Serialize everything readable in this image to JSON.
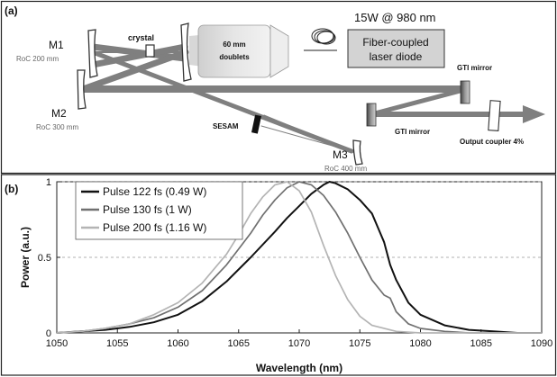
{
  "panel_a": {
    "label": "(a)",
    "m1": "M1",
    "m1_roc": "RoC 200 mm",
    "m2": "M2",
    "m2_roc": "RoC 300 mm",
    "m3": "M3",
    "m3_roc": "RoC 400 mm",
    "crystal": "crystal",
    "doublets_line1": "60 mm",
    "doublets_line2": "doublets",
    "pump": "15W @ 980 nm",
    "diode_line1": "Fiber-coupled",
    "diode_line2": "laser diode",
    "gti_mirror_top": "GTI mirror",
    "gti_mirror_bottom": "GTI mirror",
    "sesam": "SESAM",
    "output_coupler": "Output coupler 4%"
  },
  "panel_b": {
    "label": "(b)"
  },
  "colors": {
    "pulse_122": "#111111",
    "pulse_130": "#707070",
    "pulse_200": "#b4b4b4",
    "beam": "#7a7a7a"
  },
  "chart_data": {
    "type": "line",
    "title": "",
    "xlabel": "Wavelength (nm)",
    "ylabel": "Power (a.u.)",
    "xlim": [
      1050,
      1090
    ],
    "ylim": [
      0,
      1
    ],
    "xticks": [
      "1050",
      "1055",
      "1060",
      "1065",
      "1070",
      "1075",
      "1080",
      "1085",
      "1090"
    ],
    "yticks": [
      "0",
      "0.5",
      "1"
    ],
    "grid": "dashed horizontal at 0.5 and 1",
    "legend_position": "top-left",
    "series": [
      {
        "name": "Pulse 122 fs (0.49 W)",
        "color_key": "pulse_122",
        "x": [
          1050,
          1052,
          1054,
          1056,
          1058,
          1060,
          1062,
          1064,
          1066,
          1068,
          1069,
          1070,
          1071,
          1072,
          1072.5,
          1073,
          1074,
          1075,
          1076,
          1077,
          1077.5,
          1078,
          1079,
          1080,
          1082,
          1084,
          1086,
          1088,
          1090
        ],
        "y": [
          0.0,
          0.01,
          0.02,
          0.04,
          0.07,
          0.12,
          0.21,
          0.34,
          0.5,
          0.67,
          0.76,
          0.84,
          0.92,
          0.98,
          1.0,
          0.99,
          0.95,
          0.88,
          0.79,
          0.6,
          0.45,
          0.35,
          0.2,
          0.12,
          0.05,
          0.02,
          0.01,
          0.0,
          0.0
        ]
      },
      {
        "name": "Pulse 130 fs (1 W)",
        "color_key": "pulse_130",
        "x": [
          1050,
          1052,
          1054,
          1056,
          1058,
          1060,
          1062,
          1064,
          1066,
          1067,
          1068,
          1069,
          1070,
          1071,
          1072,
          1073,
          1074,
          1075,
          1076,
          1077,
          1077.5,
          1078,
          1079,
          1080,
          1082,
          1084,
          1086,
          1090
        ],
        "y": [
          0.0,
          0.01,
          0.03,
          0.06,
          0.1,
          0.17,
          0.28,
          0.45,
          0.66,
          0.78,
          0.88,
          0.96,
          1.0,
          0.98,
          0.91,
          0.8,
          0.66,
          0.5,
          0.35,
          0.25,
          0.23,
          0.14,
          0.06,
          0.03,
          0.01,
          0.0,
          0.0,
          0.0
        ]
      },
      {
        "name": "Pulse 200 fs (1.16 W)",
        "color_key": "pulse_200",
        "x": [
          1050,
          1052,
          1054,
          1056,
          1058,
          1060,
          1062,
          1064,
          1065,
          1066,
          1067,
          1068,
          1069,
          1070,
          1071,
          1072,
          1073,
          1074,
          1075,
          1076,
          1078,
          1080,
          1085,
          1090
        ],
        "y": [
          0.0,
          0.01,
          0.03,
          0.06,
          0.12,
          0.2,
          0.33,
          0.52,
          0.65,
          0.79,
          0.9,
          0.98,
          1.0,
          0.94,
          0.8,
          0.58,
          0.38,
          0.22,
          0.11,
          0.05,
          0.01,
          0.0,
          0.0,
          0.0
        ]
      }
    ]
  }
}
